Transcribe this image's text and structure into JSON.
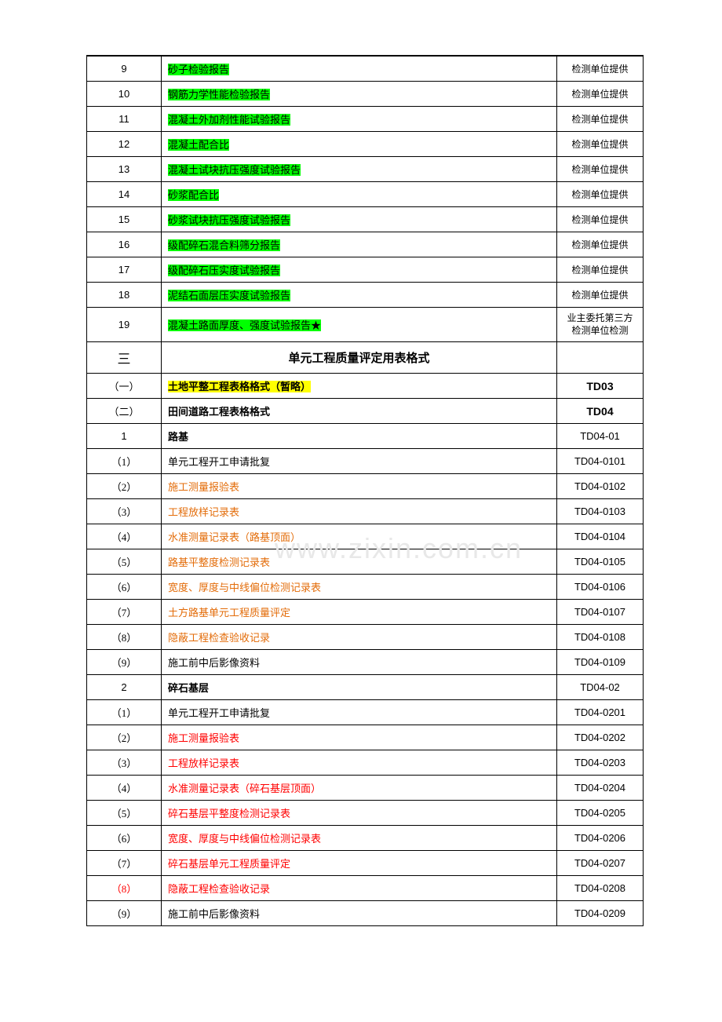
{
  "watermark": "www.zixin.com.cn",
  "rows": [
    {
      "index": "9",
      "content": "砂子检验报告",
      "remark": "检测单位提供",
      "contentHighlight": "green",
      "indexFont": "arial"
    },
    {
      "index": "10",
      "content": "钢筋力学性能检验报告",
      "remark": "检测单位提供",
      "contentHighlight": "green",
      "indexFont": "arial"
    },
    {
      "index": "11",
      "content": "混凝土外加剂性能试验报告",
      "remark": "检测单位提供",
      "contentHighlight": "green",
      "indexFont": "arial"
    },
    {
      "index": "12",
      "content": "混凝土配合比",
      "remark": "检测单位提供",
      "contentHighlight": "green",
      "indexFont": "arial"
    },
    {
      "index": "13",
      "content": "混凝土试块抗压强度试验报告",
      "remark": "检测单位提供",
      "contentHighlight": "green",
      "indexFont": "arial"
    },
    {
      "index": "14",
      "content": "砂浆配合比",
      "remark": "检测单位提供",
      "contentHighlight": "green",
      "indexFont": "arial"
    },
    {
      "index": "15",
      "content": "砂浆试块抗压强度试验报告",
      "remark": "检测单位提供",
      "contentHighlight": "green",
      "indexFont": "arial"
    },
    {
      "index": "16",
      "content": "级配碎石混合料筛分报告",
      "remark": "检测单位提供",
      "contentHighlight": "green",
      "indexFont": "arial"
    },
    {
      "index": "17",
      "content": "级配碎石压实度试验报告",
      "remark": "检测单位提供",
      "contentHighlight": "green",
      "indexFont": "arial"
    },
    {
      "index": "18",
      "content": "泥结石面层压实度试验报告",
      "remark": "检测单位提供",
      "contentHighlight": "green",
      "indexFont": "arial"
    },
    {
      "index": "19",
      "content": "混凝土路面厚度、强度试验报告★",
      "remark": "业主委托第三方检测单位检测",
      "contentHighlight": "green",
      "indexFont": "arial",
      "tallRow": true,
      "remarkMultiline": true
    },
    {
      "index": "三",
      "content": "单元工程质量评定用表格式",
      "remark": "",
      "isSection": true,
      "indexFont": "cn",
      "headerRow": true
    },
    {
      "index": "（一）",
      "content": "土地平整工程表格格式（暂略）",
      "remark": "TD03",
      "contentHighlight": "yellow",
      "indexFont": "cn",
      "contentBold": true,
      "remarkBold": true,
      "remarkFont": "arial"
    },
    {
      "index": "（二）",
      "content": "田间道路工程表格格式",
      "remark": "TD04",
      "indexFont": "cn",
      "contentBold": true,
      "remarkBold": true,
      "remarkFont": "arial"
    },
    {
      "index": "1",
      "content": "路基",
      "remark": "TD04-01",
      "indexFont": "arial",
      "contentBold": true,
      "remarkFont": "arial"
    },
    {
      "index": "（1）",
      "content": "单元工程开工申请批复",
      "remark": "TD04-0101",
      "indexFont": "cn",
      "remarkFont": "arial"
    },
    {
      "index": "（2）",
      "content": "施工测量报验表",
      "remark": "TD04-0102",
      "indexFont": "cn",
      "contentColor": "orange",
      "remarkFont": "arial"
    },
    {
      "index": "（3）",
      "content": "工程放样记录表",
      "remark": "TD04-0103",
      "indexFont": "cn",
      "contentColor": "orange",
      "remarkFont": "arial"
    },
    {
      "index": "（4）",
      "content": "水准测量记录表（路基顶面）",
      "remark": "TD04-0104",
      "indexFont": "cn",
      "contentColor": "orange",
      "remarkFont": "arial"
    },
    {
      "index": "（5）",
      "content": "路基平整度检测记录表",
      "remark": "TD04-0105",
      "indexFont": "cn",
      "contentColor": "orange",
      "remarkFont": "arial"
    },
    {
      "index": "（6）",
      "content": "宽度、厚度与中线偏位检测记录表",
      "remark": "TD04-0106",
      "indexFont": "cn",
      "contentColor": "orange",
      "remarkFont": "arial"
    },
    {
      "index": "（7）",
      "content": "土方路基单元工程质量评定",
      "remark": "TD04-0107",
      "indexFont": "cn",
      "contentColor": "orange",
      "remarkFont": "arial"
    },
    {
      "index": "（8）",
      "content": "隐蔽工程检查验收记录",
      "remark": "TD04-0108",
      "indexFont": "cn",
      "contentColor": "orange",
      "remarkFont": "arial"
    },
    {
      "index": "（9）",
      "content": "施工前中后影像资料",
      "remark": "TD04-0109",
      "indexFont": "cn",
      "remarkFont": "arial"
    },
    {
      "index": "2",
      "content": "碎石基层",
      "remark": "TD04-02",
      "indexFont": "arial",
      "contentBold": true,
      "remarkFont": "arial"
    },
    {
      "index": "（1）",
      "content": "单元工程开工申请批复",
      "remark": "TD04-0201",
      "indexFont": "cn",
      "remarkFont": "arial"
    },
    {
      "index": "（2）",
      "content": "施工测量报验表",
      "remark": "TD04-0202",
      "indexFont": "cn",
      "contentColor": "red",
      "remarkFont": "arial"
    },
    {
      "index": "（3）",
      "content": "工程放样记录表",
      "remark": "TD04-0203",
      "indexFont": "cn",
      "contentColor": "red",
      "remarkFont": "arial"
    },
    {
      "index": "（4）",
      "content": "水准测量记录表（碎石基层顶面）",
      "remark": "TD04-0204",
      "indexFont": "cn",
      "contentColor": "red",
      "remarkFont": "arial"
    },
    {
      "index": "（5）",
      "content": "碎石基层平整度检测记录表",
      "remark": "TD04-0205",
      "indexFont": "cn",
      "contentColor": "red",
      "remarkFont": "arial"
    },
    {
      "index": "（6）",
      "content": "宽度、厚度与中线偏位检测记录表",
      "remark": "TD04-0206",
      "indexFont": "cn",
      "contentColor": "red",
      "remarkFont": "arial"
    },
    {
      "index": "（7）",
      "content": "碎石基层单元工程质量评定",
      "remark": "TD04-0207",
      "indexFont": "cn",
      "contentColor": "red",
      "remarkFont": "arial"
    },
    {
      "index": "（8）",
      "content": "隐蔽工程检查验收记录",
      "remark": "TD04-0208",
      "indexFont": "cn",
      "contentColor": "red",
      "indexColor": "red",
      "remarkFont": "arial"
    },
    {
      "index": "（9）",
      "content": "施工前中后影像资料",
      "remark": "TD04-0209",
      "indexFont": "cn",
      "remarkFont": "arial"
    }
  ]
}
